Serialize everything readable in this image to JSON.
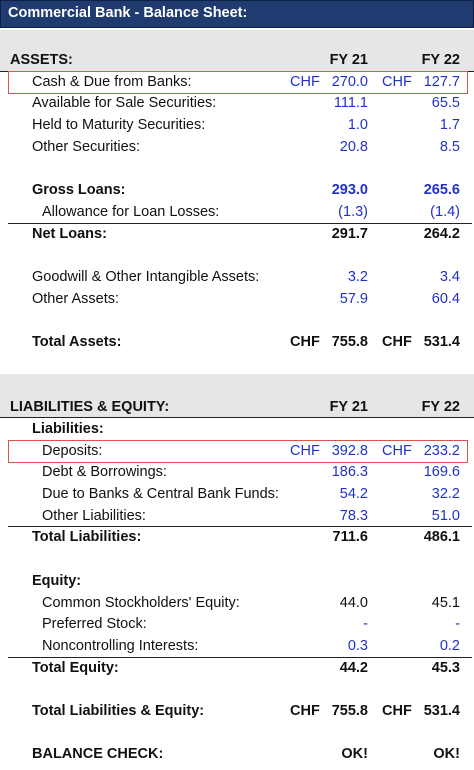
{
  "header": {
    "title": "Commercial Bank - Balance Sheet:"
  },
  "sections": [
    {
      "title": "ASSETS:",
      "columns": [
        "FY 21",
        "FY 22"
      ],
      "rows": [
        {
          "label": "Cash & Due from Banks:",
          "currency": "CHF",
          "fy21": "270.0",
          "fy22": "127.7"
        },
        {
          "label": "Available for Sale Securities:",
          "fy21": "111.1",
          "fy22": "65.5"
        },
        {
          "label": "Held to Maturity Securities:",
          "fy21": "1.0",
          "fy22": "1.7"
        },
        {
          "label": "Other Securities:",
          "fy21": "20.8",
          "fy22": "8.5"
        },
        {
          "label": "Gross Loans:",
          "fy21": "293.0",
          "fy22": "265.6"
        },
        {
          "label": "Allowance for Loan Losses:",
          "fy21": "(1.3)",
          "fy22": "(1.4)"
        },
        {
          "label": "Net Loans:",
          "fy21": "291.7",
          "fy22": "264.2"
        },
        {
          "label": "Goodwill & Other Intangible Assets:",
          "fy21": "3.2",
          "fy22": "3.4"
        },
        {
          "label": "Other Assets:",
          "fy21": "57.9",
          "fy22": "60.4"
        },
        {
          "label": "Total Assets:",
          "currency": "CHF",
          "fy21": "755.8",
          "fy22": "531.4"
        }
      ]
    },
    {
      "title": "LIABILITIES & EQUITY:",
      "columns": [
        "FY 21",
        "FY 22"
      ],
      "rows": [
        {
          "label": "Liabilities:"
        },
        {
          "label": "Deposits:",
          "currency": "CHF",
          "fy21": "392.8",
          "fy22": "233.2"
        },
        {
          "label": "Debt & Borrowings:",
          "fy21": "186.3",
          "fy22": "169.6"
        },
        {
          "label": "Due to Banks & Central Bank Funds:",
          "fy21": "54.2",
          "fy22": "32.2"
        },
        {
          "label": "Other Liabilities:",
          "fy21": "78.3",
          "fy22": "51.0"
        },
        {
          "label": "Total Liabilities:",
          "fy21": "711.6",
          "fy22": "486.1"
        },
        {
          "label": "Equity:"
        },
        {
          "label": "Common Stockholders' Equity:",
          "fy21": "44.0",
          "fy22": "45.1"
        },
        {
          "label": "Preferred Stock:",
          "fy21": "-",
          "fy22": "-"
        },
        {
          "label": "Noncontrolling Interests:",
          "fy21": "0.3",
          "fy22": "0.2"
        },
        {
          "label": "Total Equity:",
          "fy21": "44.2",
          "fy22": "45.3"
        },
        {
          "label": "Total Liabilities & Equity:",
          "currency": "CHF",
          "fy21": "755.8",
          "fy22": "531.4"
        },
        {
          "label": "BALANCE CHECK:",
          "fy21": "OK!",
          "fy22": "OK!"
        }
      ]
    }
  ]
}
